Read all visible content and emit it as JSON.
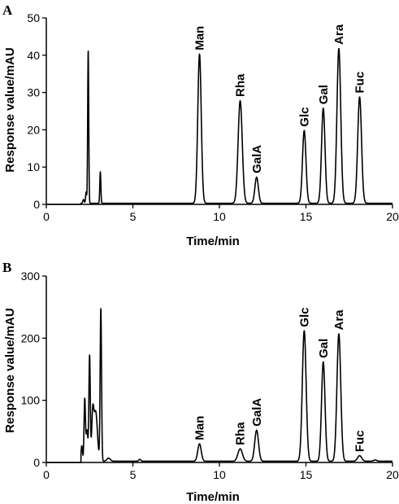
{
  "chart_data": [
    {
      "panel": "A",
      "type": "line",
      "xlabel": "Time/min",
      "ylabel": "Response value/mAU",
      "xlim": [
        0,
        20
      ],
      "ylim": [
        0,
        50
      ],
      "xticks": [
        "0",
        "5",
        "10",
        "15",
        "20"
      ],
      "yticks": [
        "0",
        "10",
        "20",
        "30",
        "40",
        "50"
      ],
      "baseline": 0.3,
      "peaks": [
        {
          "x": 2.15,
          "y": 1.0,
          "w": 0.04
        },
        {
          "x": 2.3,
          "y": 3.0,
          "w": 0.03
        },
        {
          "x": 2.42,
          "y": 41,
          "w": 0.03
        },
        {
          "x": 3.12,
          "y": 8.5,
          "w": 0.03
        },
        {
          "x": 8.85,
          "y": 40,
          "w": 0.1,
          "label": "Man"
        },
        {
          "x": 11.2,
          "y": 27.5,
          "w": 0.12,
          "label": "Rha"
        },
        {
          "x": 12.15,
          "y": 7,
          "w": 0.1,
          "label": "GalA"
        },
        {
          "x": 14.9,
          "y": 19.5,
          "w": 0.1,
          "label": "Glc"
        },
        {
          "x": 16.0,
          "y": 25.5,
          "w": 0.1,
          "label": "Gal"
        },
        {
          "x": 16.9,
          "y": 41.5,
          "w": 0.11,
          "label": "Ara"
        },
        {
          "x": 18.1,
          "y": 28.5,
          "w": 0.11,
          "label": "Fuc"
        }
      ]
    },
    {
      "panel": "B",
      "type": "line",
      "xlabel": "Time/min",
      "ylabel": "Response value/mAU",
      "xlim": [
        0,
        20
      ],
      "ylim": [
        0,
        300
      ],
      "xticks": [
        "0",
        "5",
        "10",
        "15",
        "20"
      ],
      "yticks": [
        "0",
        "100",
        "200",
        "300"
      ],
      "baseline": 2,
      "peaks": [
        {
          "x": 2.05,
          "y": 25,
          "w": 0.04
        },
        {
          "x": 2.22,
          "y": 100,
          "w": 0.04
        },
        {
          "x": 2.35,
          "y": 50,
          "w": 0.05
        },
        {
          "x": 2.5,
          "y": 170,
          "w": 0.04
        },
        {
          "x": 2.68,
          "y": 70,
          "w": 0.06
        },
        {
          "x": 2.85,
          "y": 80,
          "w": 0.1
        },
        {
          "x": 3.15,
          "y": 245,
          "w": 0.04
        },
        {
          "x": 3.6,
          "y": 5,
          "w": 0.1
        },
        {
          "x": 5.4,
          "y": 3,
          "w": 0.06
        },
        {
          "x": 8.85,
          "y": 28,
          "w": 0.1,
          "label": "Man"
        },
        {
          "x": 11.2,
          "y": 20,
          "w": 0.13,
          "label": "Rha"
        },
        {
          "x": 12.15,
          "y": 50,
          "w": 0.11,
          "label": "GalA"
        },
        {
          "x": 14.9,
          "y": 210,
          "w": 0.11,
          "label": "Glc"
        },
        {
          "x": 16.0,
          "y": 160,
          "w": 0.1,
          "label": "Gal"
        },
        {
          "x": 16.9,
          "y": 205,
          "w": 0.11,
          "label": "Ara"
        },
        {
          "x": 18.1,
          "y": 9,
          "w": 0.12,
          "label": "Fuc"
        },
        {
          "x": 19.0,
          "y": 2,
          "w": 0.1
        }
      ]
    }
  ]
}
